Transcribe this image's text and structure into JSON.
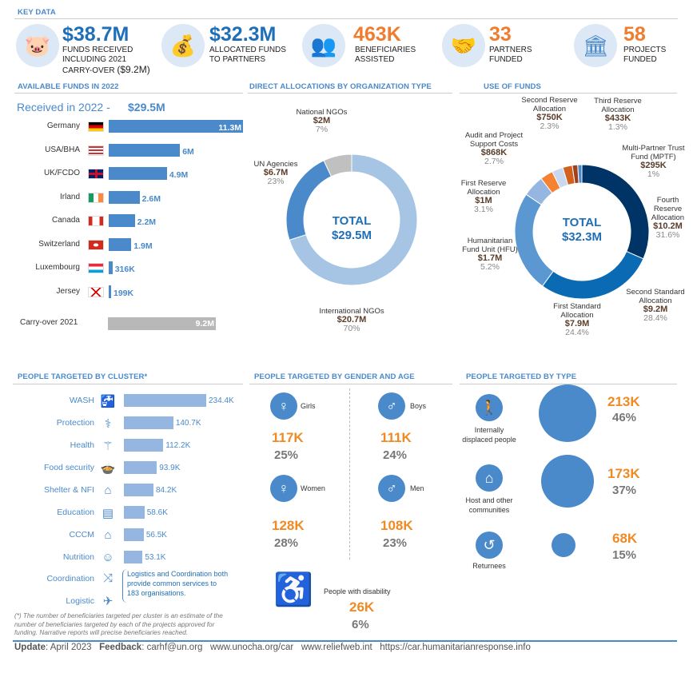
{
  "key_data": {
    "title": "KEY DATA",
    "items": [
      {
        "value": "$38.7M",
        "label": "FUNDS RECEIVED INCLUDING 2021 CARRY-OVER",
        "extra": "($9.2M)",
        "color": "#1f6fb8",
        "icon": "piggy-bank-icon"
      },
      {
        "value": "$32.3M",
        "label": "ALLOCATED FUNDS TO PARTNERS",
        "color": "#1f6fb8",
        "icon": "money-bag-icon"
      },
      {
        "value": "463K",
        "label": "BENEFICIARIES ASSISTED",
        "color": "#f07c2e",
        "icon": "beneficiaries-icon"
      },
      {
        "value": "33",
        "label": "PARTNERS FUNDED",
        "color": "#f07c2e",
        "icon": "handshake-icon"
      },
      {
        "value": "58",
        "label": "PROJECTS FUNDED",
        "color": "#f07c2e",
        "icon": "building-money-icon"
      }
    ]
  },
  "available_funds": {
    "title": "AVAILABLE FUNDS IN 2022",
    "received_label": "Received in 2022 -",
    "received_value": "$29.5M",
    "chart_data": {
      "type": "bar",
      "orientation": "horizontal",
      "categories": [
        "Germany",
        "USA/BHA",
        "UK/FCDO",
        "Irland",
        "Canada",
        "Switzerland",
        "Luxembourg",
        "Jersey"
      ],
      "values": [
        11.3,
        6,
        4.9,
        2.6,
        2.2,
        1.9,
        0.316,
        0.199
      ],
      "labels": [
        "11.3M",
        "6M",
        "4.9M",
        "2.6M",
        "2.2M",
        "1.9M",
        "316K",
        "199K"
      ],
      "unit": "USD millions",
      "color": "#4a8acb"
    },
    "carryover": {
      "label": "Carry-over 2021",
      "value": 9.2,
      "value_label": "9.2M",
      "color": "#b8b8b8"
    }
  },
  "direct_allocations": {
    "title": "DIRECT ALLOCATIONS BY ORGANIZATION TYPE",
    "total_label": "TOTAL",
    "total_value": "$29.5M",
    "chart_data": {
      "type": "pie",
      "donut": true,
      "slices": [
        {
          "name": "International NGOs",
          "value_label": "$20.7M",
          "percent": 70,
          "percent_label": "70%",
          "color": "#a6c4e4"
        },
        {
          "name": "UN Agencies",
          "value_label": "$6.7M",
          "percent": 23,
          "percent_label": "23%",
          "color": "#4a8acb"
        },
        {
          "name": "National NGOs",
          "value_label": "$2M",
          "percent": 7,
          "percent_label": "7%",
          "color": "#c0c0c0"
        }
      ]
    }
  },
  "use_of_funds": {
    "title": "USE OF FUNDS",
    "total_label": "TOTAL",
    "total_value": "$32.3M",
    "chart_data": {
      "type": "pie",
      "donut": true,
      "slices": [
        {
          "name": "Fourth Reserve Allocation",
          "value_label": "$10.2M",
          "percent": 31.6,
          "percent_label": "31.6%",
          "color": "#003366"
        },
        {
          "name": "Second Standard Allocation",
          "value_label": "$9.2M",
          "percent": 28.4,
          "percent_label": "28.4%",
          "color": "#0a6ab3"
        },
        {
          "name": "First Standard Allocation",
          "value_label": "$7.9M",
          "percent": 24.4,
          "percent_label": "24.4%",
          "color": "#5b98d2"
        },
        {
          "name": "Humanitarian Fund Unit (HFU)",
          "value_label": "$1.7M",
          "percent": 5.2,
          "percent_label": "5.2%",
          "color": "#94b6e0"
        },
        {
          "name": "First Reserve Allocation",
          "value_label": "$1M",
          "percent": 3.1,
          "percent_label": "3.1%",
          "color": "#f58233"
        },
        {
          "name": "Audit and Project Support Costs",
          "value_label": "$868K",
          "percent": 2.7,
          "percent_label": "2.7%",
          "color": "#c9d8ef"
        },
        {
          "name": "Second Reserve Allocation",
          "value_label": "$750K",
          "percent": 2.3,
          "percent_label": "2.3%",
          "color": "#d2601f"
        },
        {
          "name": "Third Reserve Allocation",
          "value_label": "$433K",
          "percent": 1.3,
          "percent_label": "1.3%",
          "color": "#a33f1a"
        },
        {
          "name": "Multi-Partner Trust Fund (MPTF)",
          "value_label": "$295K",
          "percent": 1,
          "percent_label": "1%",
          "color": "#4a8acb"
        }
      ]
    }
  },
  "clusters": {
    "title": "PEOPLE TARGETED BY CLUSTER*",
    "chart_data": {
      "type": "bar",
      "orientation": "horizontal",
      "categories": [
        "WASH",
        "Protection",
        "Health",
        "Food security",
        "Shelter & NFI",
        "Education",
        "CCCM",
        "Nutrition"
      ],
      "values": [
        234.4,
        140.7,
        112.2,
        93.9,
        84.2,
        58.6,
        56.5,
        53.1
      ],
      "labels": [
        "234.4K",
        "140.7K",
        "112.2K",
        "93.9K",
        "84.2K",
        "58.6K",
        "56.5K",
        "53.1K"
      ],
      "unit": "thousand people",
      "color": "#94b6e0"
    },
    "icons": [
      "tap-icon",
      "protection-icon",
      "health-icon",
      "food-bowl-icon",
      "shelter-icon",
      "education-book-icon",
      "cccm-icon",
      "nutrition-icon"
    ],
    "extra": [
      {
        "label": "Coordination",
        "icon": "coordination-icon"
      },
      {
        "label": "Logistic",
        "icon": "logistic-icon"
      }
    ],
    "note": "Logistics and Coordination both provide common services to 183 organisations.",
    "footnote": "(*) The number of beneficiaries targeted per cluster is an estimate of the number of beneficiaries targeted by each of the projects approved for funding. Narrative reports will precise beneficiaries reached."
  },
  "gender_age": {
    "title": "PEOPLE TARGETED BY GENDER AND AGE",
    "groups": [
      {
        "label": "Girls",
        "value": "117K",
        "percent": "25%"
      },
      {
        "label": "Boys",
        "value": "111K",
        "percent": "24%"
      },
      {
        "label": "Women",
        "value": "128K",
        "percent": "28%"
      },
      {
        "label": "Men",
        "value": "108K",
        "percent": "23%"
      }
    ],
    "disability": {
      "label": "People with disability",
      "value": "26K",
      "percent": "6%"
    }
  },
  "by_type": {
    "title": "PEOPLE TARGETED BY TYPE",
    "types": [
      {
        "label": "Internally displaced people",
        "value": "213K",
        "percent": "46%",
        "share": 46
      },
      {
        "label": "Host and other communities",
        "value": "173K",
        "percent": "37%",
        "share": 37
      },
      {
        "label": "Returnees",
        "value": "68K",
        "percent": "15%",
        "share": 15
      }
    ]
  },
  "footer": {
    "update_label": "Update",
    "update_value": ": April 2023",
    "feedback_label": "Feedback",
    "feedback_value": ": carhf@un.org",
    "links": [
      "www.unocha.org/car",
      "www.reliefweb.int",
      "https://car.humanitarianresponse.info"
    ]
  }
}
